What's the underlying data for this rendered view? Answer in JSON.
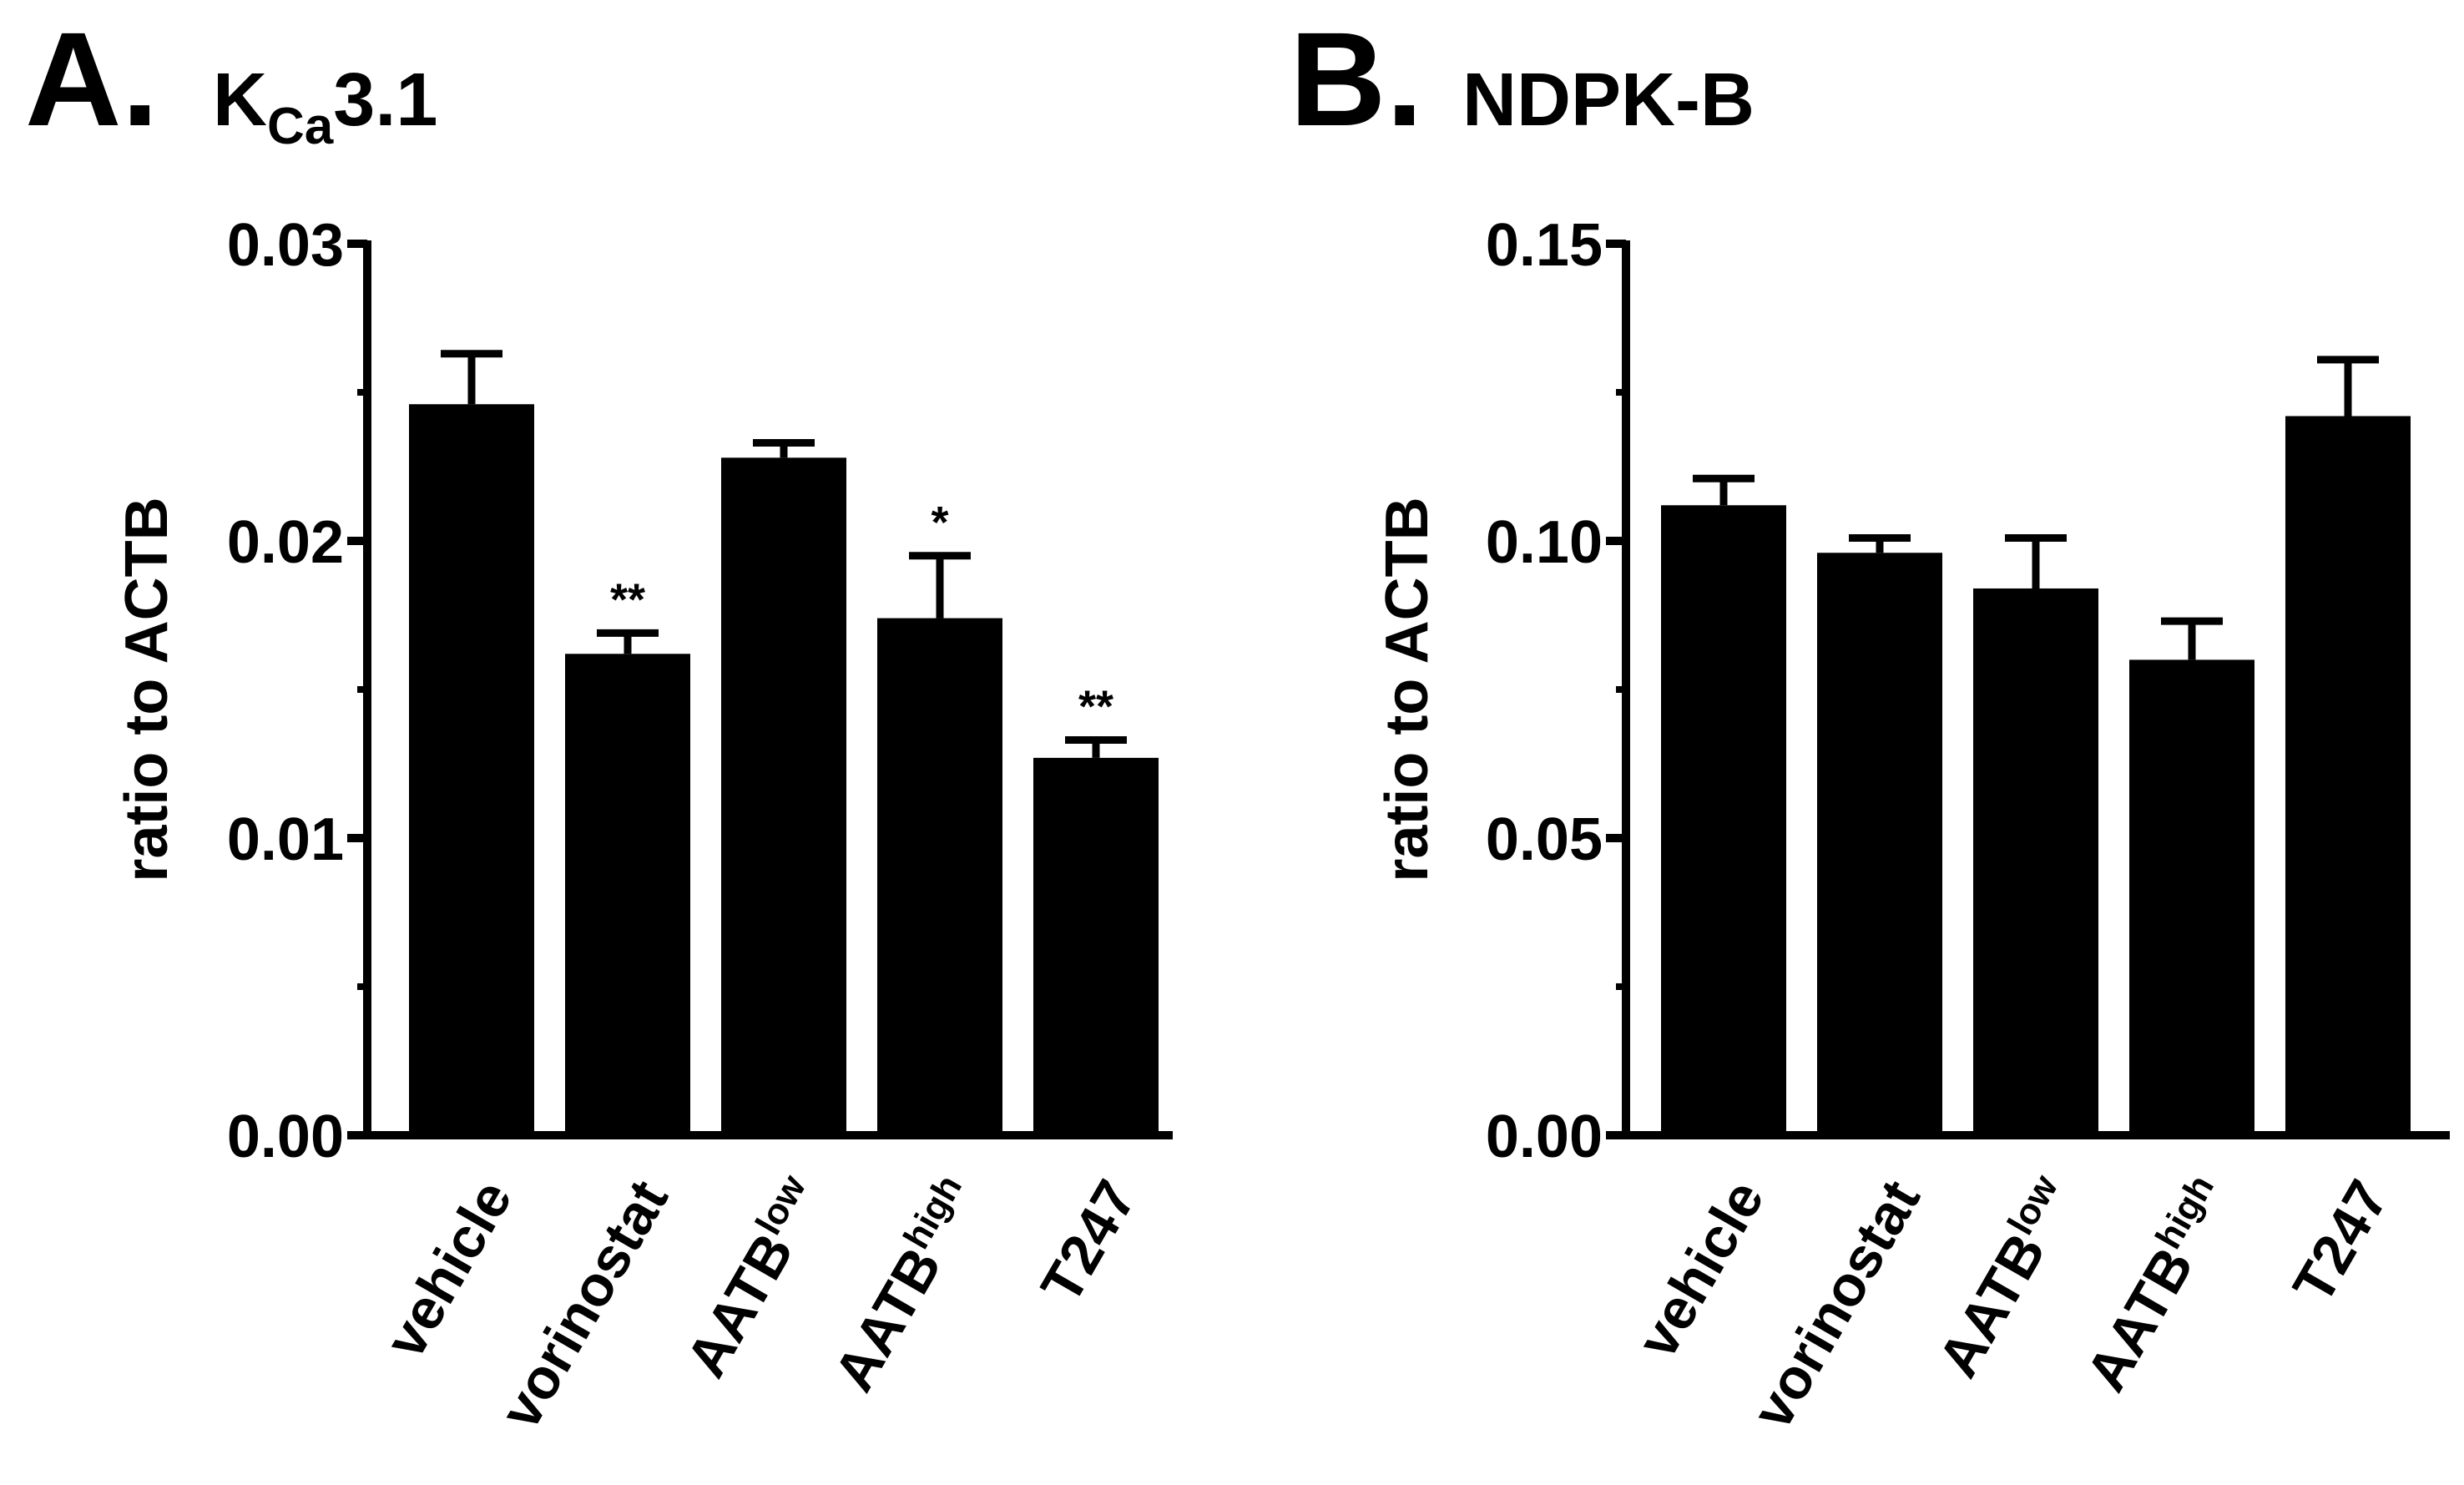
{
  "panels": [
    {
      "letter": "A.",
      "title": {
        "main": "K",
        "sub": "Ca",
        "rest": "3.1"
      },
      "chart_data": {
        "type": "bar",
        "title": "KCa3.1",
        "ylabel": "ratio to ACTB",
        "ylim": [
          0,
          0.03
        ],
        "yticks": [
          "0.00",
          "0.01",
          "0.02",
          "0.03"
        ],
        "ytick_values": [
          0,
          0.01,
          0.02,
          0.03
        ],
        "categories": [
          {
            "base": "vehicle",
            "sup": ""
          },
          {
            "base": "vorinostat",
            "sup": ""
          },
          {
            "base": "AATB",
            "sup": "low"
          },
          {
            "base": "AATB",
            "sup": "high"
          },
          {
            "base": "T247",
            "sup": ""
          }
        ],
        "values": [
          0.0246,
          0.0162,
          0.0228,
          0.0174,
          0.0127
        ],
        "errors": [
          0.0017,
          0.0007,
          0.0005,
          0.0021,
          0.0006
        ],
        "significance": [
          "",
          "**",
          "",
          "*",
          "**"
        ],
        "color": "#000000"
      }
    },
    {
      "letter": "B.",
      "title": {
        "main": "NDPK-B",
        "sub": "",
        "rest": ""
      },
      "chart_data": {
        "type": "bar",
        "title": "NDPK-B",
        "ylabel": "ratio to ACTB",
        "ylim": [
          0,
          0.15
        ],
        "yticks": [
          "0.00",
          "0.05",
          "0.10",
          "0.15"
        ],
        "ytick_values": [
          0,
          0.05,
          0.1,
          0.15
        ],
        "categories": [
          {
            "base": "vehicle",
            "sup": ""
          },
          {
            "base": "vorinostat",
            "sup": ""
          },
          {
            "base": "AATB",
            "sup": "low"
          },
          {
            "base": "AATB",
            "sup": "high"
          },
          {
            "base": "T247",
            "sup": ""
          }
        ],
        "values": [
          0.106,
          0.098,
          0.092,
          0.08,
          0.121
        ],
        "errors": [
          0.0045,
          0.0025,
          0.0085,
          0.0065,
          0.0095
        ],
        "significance": [
          "",
          "",
          "",
          "",
          ""
        ],
        "color": "#000000"
      }
    }
  ]
}
